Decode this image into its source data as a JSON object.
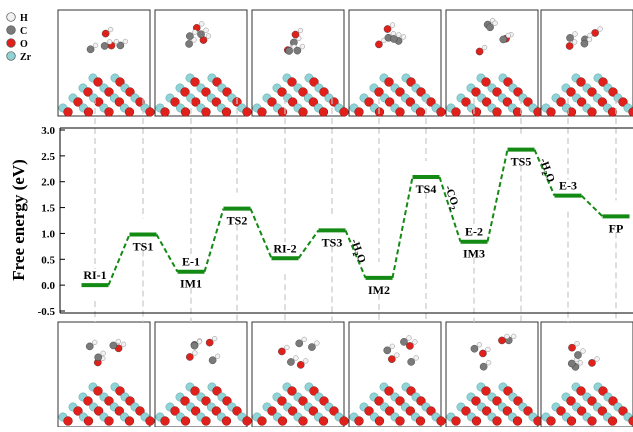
{
  "legend": {
    "items": [
      {
        "symbol": "H",
        "color": "#f2f2f2"
      },
      {
        "symbol": "C",
        "color": "#7a7a7a"
      },
      {
        "symbol": "O",
        "color": "#e0201b"
      },
      {
        "symbol": "Zr",
        "color": "#8fd3d6"
      }
    ]
  },
  "colors": {
    "level": "#138a13",
    "connector": "#138a13",
    "guide": "#c8c8c8",
    "oxygen": "#e0201b",
    "zirconium": "#8fd3d6",
    "carbon": "#7a7a7a",
    "hydrogen": "#f2f2f2"
  },
  "chart_data": {
    "type": "line",
    "ylabel": "Free energy (eV)",
    "ylim": [
      -0.5,
      3.0
    ],
    "yticks": [
      "-0.5",
      "0.0",
      "0.5",
      "1.0",
      "1.5",
      "2.0",
      "2.5",
      "3.0"
    ],
    "grid": false,
    "states": [
      {
        "label": "RI-1",
        "energy": 0.0,
        "label_side": "above"
      },
      {
        "label": "TS1",
        "energy": 0.98,
        "label_side": "below"
      },
      {
        "label": "E-1",
        "energy": 0.26,
        "label_side": "above"
      },
      {
        "label": "IM1",
        "energy": 0.26,
        "label_side": "below"
      },
      {
        "label": "TS2",
        "energy": 1.48,
        "label_side": "below"
      },
      {
        "label": "RI-2",
        "energy": 0.52,
        "label_side": "above"
      },
      {
        "label": "TS3",
        "energy": 1.06,
        "label_side": "below"
      },
      {
        "label": "IM2",
        "energy": 0.14,
        "label_side": "below"
      },
      {
        "label": "TS4",
        "energy": 2.09,
        "label_side": "below"
      },
      {
        "label": "E-2",
        "energy": 0.84,
        "label_side": "above"
      },
      {
        "label": "IM3",
        "energy": 0.84,
        "label_side": "below"
      },
      {
        "label": "TS5",
        "energy": 2.62,
        "label_side": "below"
      },
      {
        "label": "E-3",
        "energy": 1.73,
        "label_side": "above"
      },
      {
        "label": "FP",
        "energy": 1.33,
        "label_side": "below"
      }
    ],
    "annotations": [
      {
        "text": "-H",
        "sub": "2",
        "tail": "O",
        "after_state": "TS3"
      },
      {
        "text": "-CO",
        "sub": "2",
        "tail": "",
        "after_state": "TS4"
      },
      {
        "text": "-H",
        "sub": "2",
        "tail": "O",
        "after_state": "TS5"
      }
    ]
  }
}
